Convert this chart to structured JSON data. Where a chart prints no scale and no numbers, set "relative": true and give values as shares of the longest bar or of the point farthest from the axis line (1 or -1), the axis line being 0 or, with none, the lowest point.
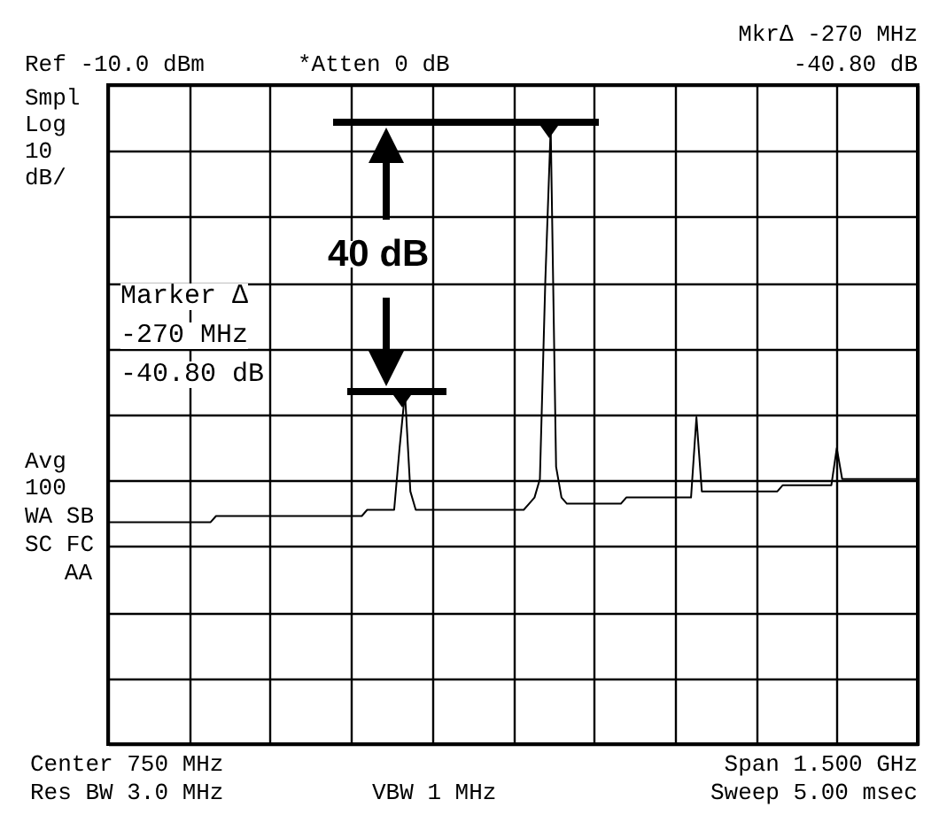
{
  "chart_data": {
    "type": "line",
    "relative": true,
    "annotations": [
      "Ref -10.0 dBm",
      "*Atten 0 dB",
      "Mkr∆ -270 MHz",
      "-40.80 dB",
      "Smpl",
      "Log",
      "10",
      "dB/",
      "Avg",
      "100",
      "WA SB",
      "SC FC",
      "AA",
      "40 dB",
      "Marker ∆",
      "-270 MHz",
      "-40.80 dB",
      "Center 750 MHz",
      "Res BW 3.0 MHz",
      "VBW 1 MHz",
      "Span 1.500 GHz",
      "Sweep 5.00 msec"
    ],
    "categories": [
      null,
      null,
      null,
      null,
      null,
      null,
      null,
      null,
      null,
      null,
      null,
      null,
      null,
      null,
      null,
      null,
      null,
      null,
      null,
      null,
      null,
      null,
      null,
      null,
      null,
      null,
      null,
      null,
      null,
      null,
      null,
      null,
      null,
      null,
      null,
      null,
      null,
      null,
      null,
      null,
      null,
      null,
      null,
      null,
      null,
      null,
      null,
      null,
      null,
      null,
      null,
      null,
      null,
      null,
      null,
      null,
      null,
      null,
      null,
      null,
      null,
      null,
      null,
      null,
      null,
      null,
      null,
      null,
      null,
      null,
      null,
      null,
      null,
      null,
      null,
      null,
      null,
      null,
      null,
      null,
      null,
      null,
      null,
      null,
      null,
      null,
      null,
      null,
      null,
      null,
      null,
      null,
      null,
      null,
      null,
      null,
      null,
      null,
      null,
      null,
      null,
      null,
      null,
      null,
      null,
      null,
      null,
      null,
      null,
      null,
      null,
      null,
      null,
      null,
      null,
      null,
      null,
      null,
      null,
      null,
      null,
      null,
      null,
      null,
      null,
      null,
      null,
      null,
      null,
      null,
      null,
      null,
      null,
      null,
      null,
      null,
      null,
      null,
      null,
      null,
      null,
      null,
      null,
      null,
      null,
      null,
      null,
      null,
      null,
      null,
      null
    ],
    "series": [
      {
        "color": "#000000",
        "values": [
          0.36,
          0.36,
          0.36,
          0.36,
          0.36,
          0.36,
          0.36,
          0.36,
          0.36,
          0.36,
          0.36,
          0.36,
          0.36,
          0.36,
          0.36,
          0.36,
          0.36,
          0.36,
          0.36,
          0.36,
          0.37,
          0.37,
          0.37,
          0.37,
          0.37,
          0.37,
          0.37,
          0.37,
          0.37,
          0.37,
          0.37,
          0.37,
          0.37,
          0.37,
          0.37,
          0.37,
          0.37,
          0.37,
          0.37,
          0.37,
          0.37,
          0.37,
          0.37,
          0.37,
          0.37,
          0.37,
          0.37,
          0.37,
          0.38,
          0.38,
          0.38,
          0.38,
          0.38,
          0.38,
          0.48,
          0.57,
          0.41,
          0.38,
          0.38,
          0.38,
          0.38,
          0.38,
          0.38,
          0.38,
          0.38,
          0.38,
          0.38,
          0.38,
          0.38,
          0.38,
          0.38,
          0.38,
          0.38,
          0.38,
          0.38,
          0.38,
          0.38,
          0.38,
          0.39,
          0.4,
          0.43,
          0.75,
          1,
          0.45,
          0.4,
          0.39,
          0.39,
          0.39,
          0.39,
          0.39,
          0.39,
          0.39,
          0.39,
          0.39,
          0.39,
          0.39,
          0.4,
          0.4,
          0.4,
          0.4,
          0.4,
          0.4,
          0.4,
          0.4,
          0.4,
          0.4,
          0.4,
          0.4,
          0.4,
          0.53,
          0.41,
          0.41,
          0.41,
          0.41,
          0.41,
          0.41,
          0.41,
          0.41,
          0.41,
          0.41,
          0.41,
          0.41,
          0.41,
          0.41,
          0.41,
          0.42,
          0.42,
          0.42,
          0.42,
          0.42,
          0.42,
          0.42,
          0.42,
          0.42,
          0.42,
          0.48,
          0.43,
          0.43,
          0.43,
          0.43,
          0.43,
          0.43,
          0.43,
          0.43,
          0.43,
          0.43,
          0.43,
          0.43,
          0.43,
          0.43,
          0.43
        ]
      }
    ],
    "grid": true,
    "marker": "none",
    "line_style": "solid"
  }
}
